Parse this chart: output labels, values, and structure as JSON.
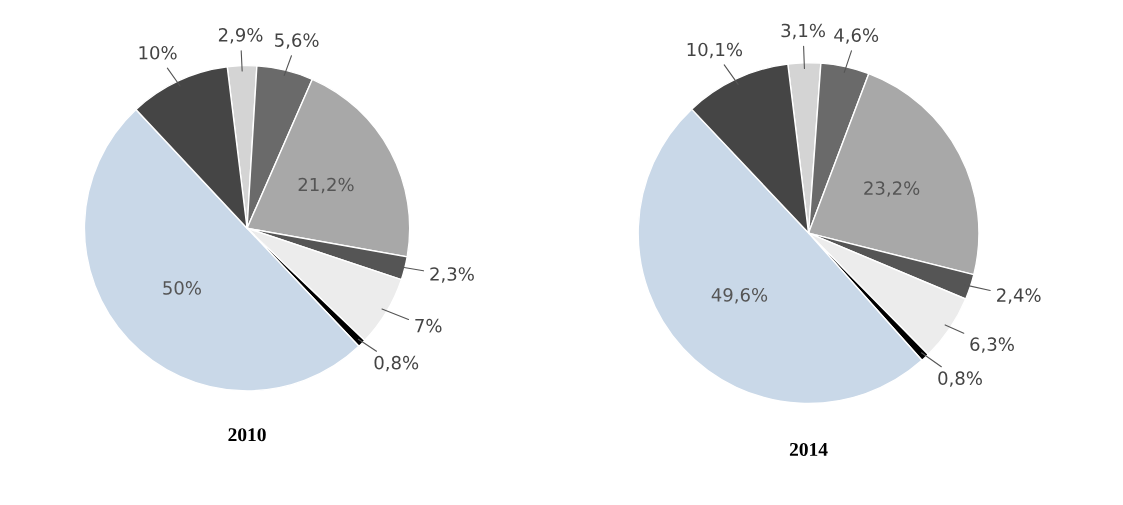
{
  "chart_data": [
    {
      "type": "pie",
      "title": "2010",
      "categories": [
        null,
        null,
        null,
        null,
        null,
        null,
        null,
        null
      ],
      "values": [
        2.9,
        5.6,
        21.2,
        2.3,
        7,
        0.8,
        50,
        10
      ],
      "value_labels": [
        "2,9%",
        "5,6%",
        "21,2%",
        "2,3%",
        "7%",
        "0,8%",
        "50%",
        "10%"
      ],
      "colors": [
        "#d4d4d4",
        "#6a6a6a",
        "#a8a8a8",
        "#555555",
        "#ececec",
        "#000000",
        "#c9d8e8",
        "#454545"
      ]
    },
    {
      "type": "pie",
      "title": "2014",
      "categories": [
        null,
        null,
        null,
        null,
        null,
        null,
        null,
        null
      ],
      "values": [
        3.1,
        4.6,
        23.2,
        2.4,
        6.3,
        0.8,
        49.6,
        10.1
      ],
      "value_labels": [
        "3,1%",
        "4,6%",
        "23,2%",
        "2,4%",
        "6,3%",
        "0,8%",
        "49,6%",
        "10,1%"
      ],
      "colors": [
        "#d4d4d4",
        "#6a6a6a",
        "#a8a8a8",
        "#555555",
        "#ececec",
        "#000000",
        "#c9d8e8",
        "#454545"
      ]
    }
  ]
}
